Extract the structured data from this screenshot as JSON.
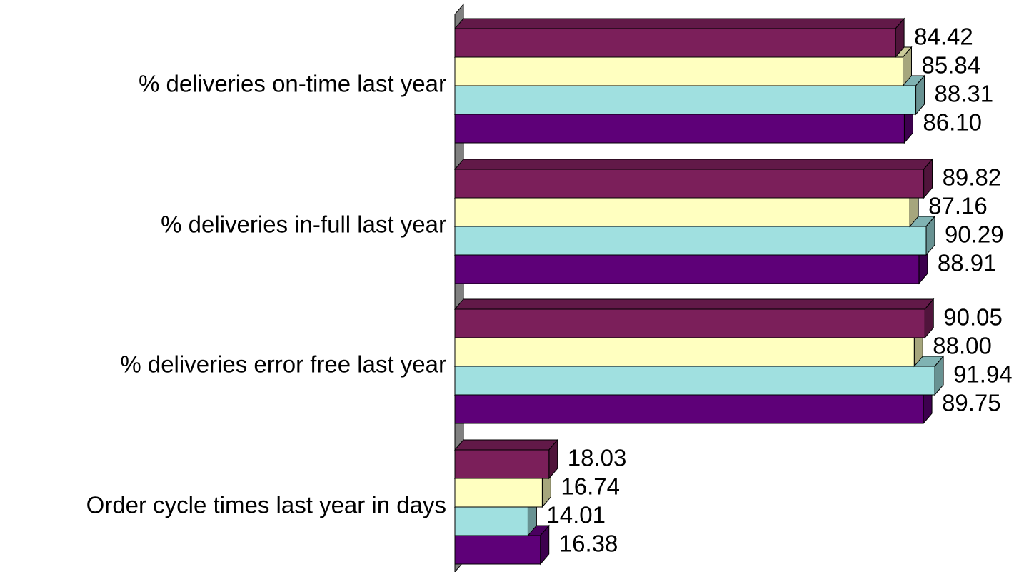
{
  "chart_data": {
    "type": "bar",
    "orientation": "horizontal",
    "categories": [
      "% deliveries on-time last year",
      "% deliveries in-full last year",
      "% deliveries error free last year",
      "Order cycle times last year in days"
    ],
    "series": [
      {
        "color": "#7b1f5a",
        "values": [
          84.42,
          89.82,
          90.05,
          18.03
        ],
        "value_labels": [
          "84.42",
          "89.82",
          "90.05",
          "18.03"
        ]
      },
      {
        "color": "#ffffc0",
        "values": [
          85.84,
          87.16,
          88.0,
          16.74
        ],
        "value_labels": [
          "85.84",
          "87.16",
          "88.00",
          "16.74"
        ]
      },
      {
        "color": "#a0e0e0",
        "values": [
          88.31,
          90.29,
          91.94,
          14.01
        ],
        "value_labels": [
          "88.31",
          "90.29",
          "91.94",
          "14.01"
        ]
      },
      {
        "color": "#5e0078",
        "values": [
          86.1,
          88.91,
          89.75,
          16.38
        ],
        "value_labels": [
          "86.10",
          "88.91",
          "89.75",
          "16.38"
        ]
      }
    ],
    "xlim": [
      0,
      100
    ]
  }
}
